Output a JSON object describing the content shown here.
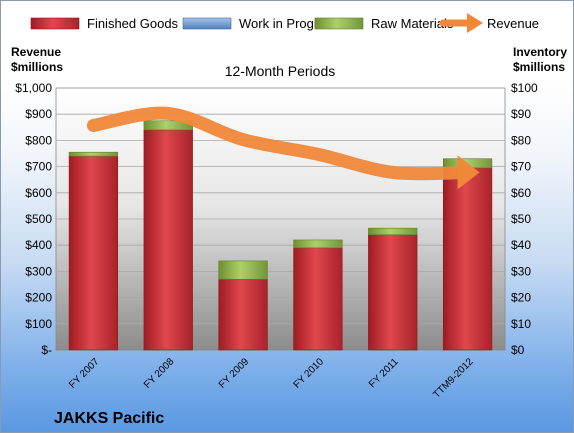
{
  "chart_data": {
    "type": "bar",
    "stacked": true,
    "title": "12-Month Periods",
    "company": "JAKKS Pacific",
    "categories": [
      "FY 2007",
      "FY 2008",
      "FY 2009",
      "FY 2010",
      "FY 2011",
      "TTM9-2012"
    ],
    "series": [
      {
        "name": "Finished Goods",
        "axis": "right",
        "color": "#c0272d",
        "values": [
          74,
          84,
          27,
          39,
          44,
          69.5
        ]
      },
      {
        "name": "Work in Progress",
        "axis": "right",
        "color": "#4f81bd",
        "values": [
          0,
          0,
          0,
          0,
          0,
          0
        ]
      },
      {
        "name": "Raw Materials",
        "axis": "right",
        "color": "#8fb34a",
        "values": [
          1.5,
          3.5,
          7,
          3,
          2.5,
          3.5
        ]
      },
      {
        "name": "Revenue",
        "axis": "left",
        "type": "line",
        "color": "#f0883a",
        "values": [
          857,
          903,
          803,
          747,
          678,
          678
        ]
      }
    ],
    "left_axis": {
      "label": "Revenue\n$millions",
      "ylim": [
        0,
        1000
      ],
      "ticks": [
        "$-",
        "$100",
        "$200",
        "$300",
        "$400",
        "$500",
        "$600",
        "$700",
        "$800",
        "$900",
        "$1,000"
      ]
    },
    "right_axis": {
      "label": "Inventory\n$millions",
      "ylim": [
        0,
        100
      ],
      "ticks": [
        "$0",
        "$10",
        "$20",
        "$30",
        "$40",
        "$50",
        "$60",
        "$70",
        "$80",
        "$90",
        "$100"
      ]
    },
    "legend_position": "top",
    "grid": true
  }
}
